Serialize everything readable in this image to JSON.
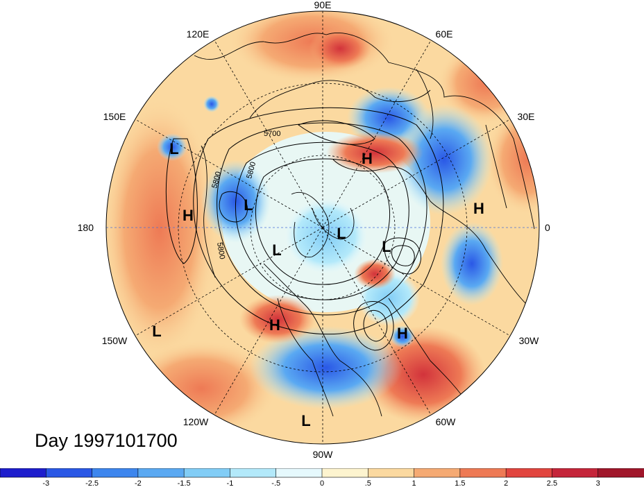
{
  "title": "Day 1997101700",
  "longitude_labels": {
    "top": "90E",
    "bottom": "90W",
    "left": "180",
    "right": "0",
    "upper_left_1": "120E",
    "upper_left_2": "150E",
    "upper_right_1": "60E",
    "upper_right_2": "30E",
    "lower_left_1": "150W",
    "lower_left_2": "120W",
    "lower_right_1": "30W",
    "lower_right_2": "60W"
  },
  "pressure_centers": [
    {
      "label": "L",
      "id": "l-west-pacific"
    },
    {
      "label": "H",
      "id": "h-north-pacific"
    },
    {
      "label": "L",
      "id": "l-bering"
    },
    {
      "label": "H",
      "id": "h-siberia"
    },
    {
      "label": "L",
      "id": "l-arctic"
    },
    {
      "label": "L",
      "id": "l-canada"
    },
    {
      "label": "L",
      "id": "l-greenland"
    },
    {
      "label": "H",
      "id": "h-europe"
    },
    {
      "label": "H",
      "id": "h-north-america"
    },
    {
      "label": "H",
      "id": "h-atlantic"
    },
    {
      "label": "L",
      "id": "l-gulf-alaska"
    },
    {
      "label": "L",
      "id": "l-south"
    }
  ],
  "contour_labels": [
    "5700",
    "5800",
    "5800",
    "5800"
  ],
  "colorbar": {
    "ticks": [
      "-3",
      "-2.5",
      "-2",
      "-1.5",
      "-1",
      "-.5",
      "0",
      ".5",
      "1",
      "1.5",
      "2",
      "2.5",
      "3"
    ],
    "colors": [
      "#1e1ecd",
      "#2a58e6",
      "#3d86ee",
      "#5aa9f2",
      "#82cdf6",
      "#b3e9fa",
      "#e6f9fd",
      "#fdf4cf",
      "#fbd9a0",
      "#f5aa73",
      "#ee7a55",
      "#e1453f",
      "#c5253a",
      "#a0162a"
    ]
  }
}
